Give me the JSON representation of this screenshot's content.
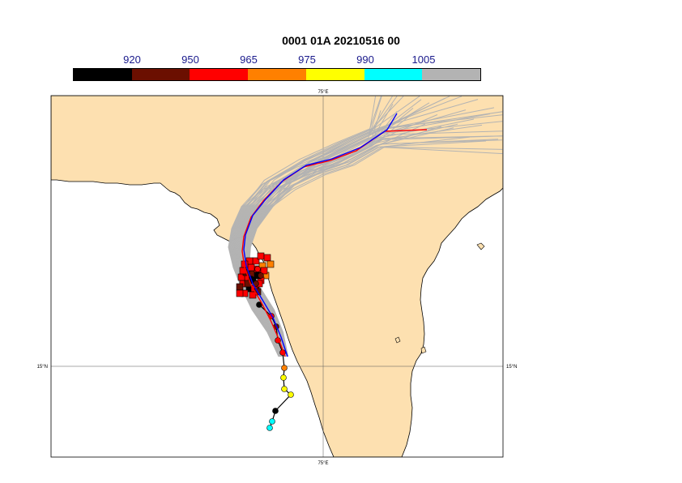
{
  "title": "0001 01A 20210516 00",
  "colorbar": {
    "labels": [
      "920",
      "950",
      "965",
      "975",
      "990",
      "1005"
    ],
    "colors": [
      "#000000",
      "#6b0f00",
      "#ff0000",
      "#ff8000",
      "#ffff00",
      "#00ffff",
      "#b3b3b3"
    ]
  },
  "axes": {
    "lon_label_top": "75°E",
    "lon_label_bottom": "75°E",
    "lat_label_left": "15°N",
    "lat_label_right": "15°N"
  },
  "colors": {
    "land": "#fde0b0",
    "sea": "#ffffff",
    "ensemble": "#b3b3b3",
    "track_red": "#ff0000",
    "track_blue": "#0000ff",
    "observed": "#000000"
  }
}
